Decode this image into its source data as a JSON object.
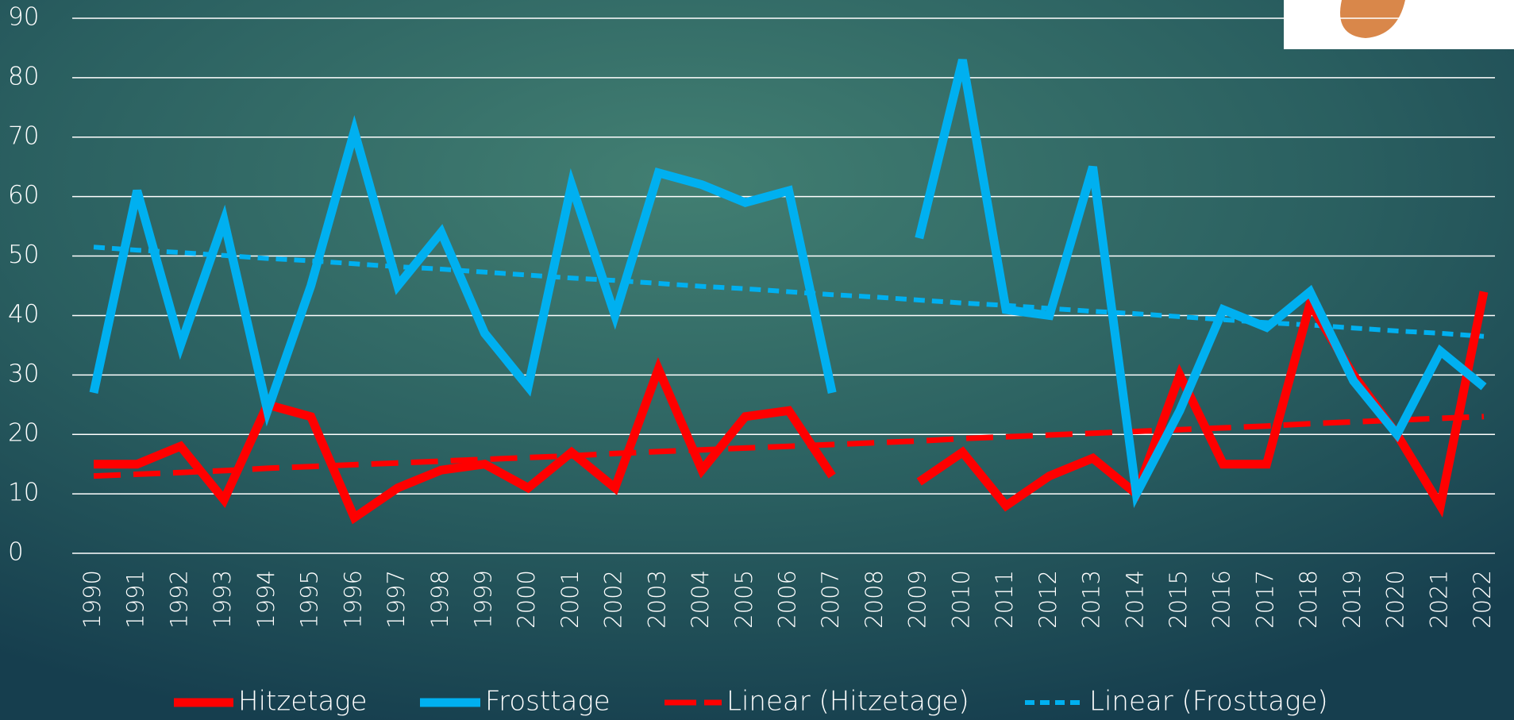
{
  "chart_data": {
    "type": "line",
    "categories": [
      "1990",
      "1991",
      "1992",
      "1993",
      "1994",
      "1995",
      "1996",
      "1997",
      "1998",
      "1999",
      "2000",
      "2001",
      "2002",
      "2003",
      "2004",
      "2005",
      "2006",
      "2007",
      "2008",
      "2009",
      "2010",
      "2011",
      "2012",
      "2013",
      "2014",
      "2015",
      "2016",
      "2017",
      "2018",
      "2019",
      "2020",
      "2021",
      "2022"
    ],
    "series": [
      {
        "name": "Hitzetage",
        "color": "#ff0000",
        "line_style": "solid",
        "values": [
          15,
          15,
          18,
          9,
          25,
          23,
          6,
          11,
          14,
          15,
          11,
          17,
          11,
          31,
          14,
          23,
          24,
          13,
          null,
          12,
          17,
          8,
          13,
          16,
          10,
          30,
          15,
          15,
          42,
          30,
          20,
          8,
          44
        ]
      },
      {
        "name": "Frosttage",
        "color": "#00b0f0",
        "line_style": "solid",
        "values": [
          27,
          61,
          35,
          56,
          24,
          45,
          71,
          45,
          54,
          37,
          28,
          62,
          40,
          64,
          62,
          59,
          61,
          27,
          null,
          53,
          83,
          41,
          40,
          65,
          10,
          24,
          41,
          38,
          44,
          29,
          20,
          34,
          28
        ]
      },
      {
        "name": "Linear (Hitzetage)",
        "color": "#ff0000",
        "line_style": "long-dash",
        "values": [
          13,
          13.3,
          13.6,
          13.9,
          14.3,
          14.6,
          14.9,
          15.2,
          15.5,
          15.8,
          16.1,
          16.4,
          16.8,
          17.1,
          17.4,
          17.7,
          18,
          18.3,
          18.6,
          18.9,
          19.3,
          19.6,
          19.9,
          20.2,
          20.5,
          20.8,
          21.1,
          21.4,
          21.8,
          22.1,
          22.4,
          22.7,
          23
        ]
      },
      {
        "name": "Linear (Frosttage)",
        "color": "#00b0f0",
        "line_style": "dash",
        "values": [
          51.5,
          51,
          50.6,
          50.1,
          49.6,
          49.2,
          48.7,
          48.2,
          47.8,
          47.3,
          46.8,
          46.3,
          45.9,
          45.4,
          44.9,
          44.5,
          44,
          43.5,
          43.1,
          42.6,
          42.1,
          41.7,
          41.2,
          40.7,
          40.3,
          39.8,
          39.3,
          38.8,
          38.4,
          37.9,
          37.4,
          37,
          36.5
        ]
      }
    ],
    "ylim": [
      0,
      90
    ],
    "yticks": [
      0,
      10,
      20,
      30,
      40,
      50,
      60,
      70,
      80,
      90
    ],
    "grid": true,
    "legend": "bottom"
  }
}
